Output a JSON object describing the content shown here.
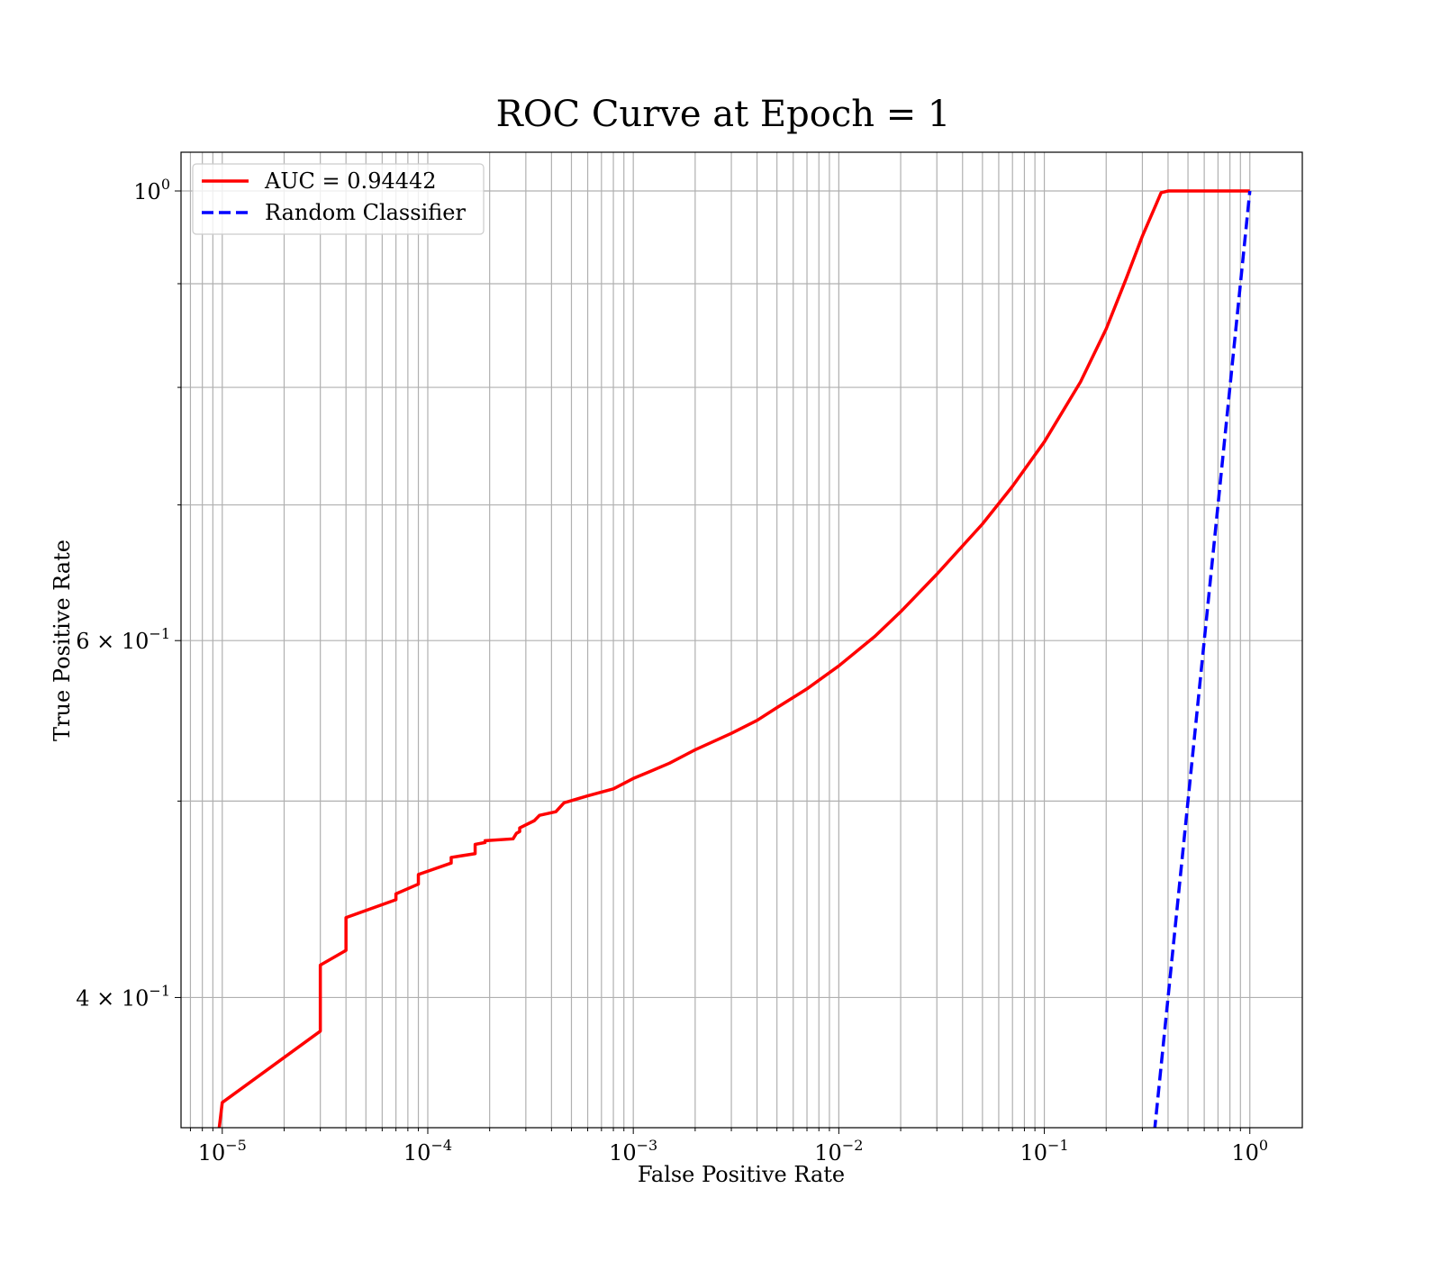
{
  "chart_data": {
    "type": "line",
    "title": "ROC Curve at Epoch = 1",
    "xlabel": "False Positive Rate",
    "ylabel": "True Positive Rate",
    "x_scale": "log",
    "y_scale": "log",
    "xlim": [
      6.3e-06,
      1.8
    ],
    "ylim": [
      0.345,
      1.045
    ],
    "grid": "both",
    "legend_position": "top-left",
    "x_ticks": [
      {
        "base": "10",
        "exp": "−5"
      },
      {
        "base": "10",
        "exp": "−4"
      },
      {
        "base": "10",
        "exp": "−3"
      },
      {
        "base": "10",
        "exp": "−2"
      },
      {
        "base": "10",
        "exp": "−1"
      },
      {
        "base": "10",
        "exp": "0"
      }
    ],
    "x_tick_values": [
      1e-05,
      0.0001,
      0.001,
      0.01,
      0.1,
      1
    ],
    "y_ticks": [
      {
        "value": 1.0,
        "mantissa": "",
        "base": "10",
        "exp": "0"
      },
      {
        "value": 0.6,
        "mantissa": "6 × ",
        "base": "10",
        "exp": "−1"
      },
      {
        "value": 0.4,
        "mantissa": "4 × ",
        "base": "10",
        "exp": "−1"
      }
    ],
    "y_minor_values": [
      0.9,
      0.8,
      0.7,
      0.5
    ],
    "series": [
      {
        "name": "AUC = 0.94442",
        "color": "#ff0000",
        "dash": "solid",
        "points": [
          [
            9.5e-06,
            0.34
          ],
          [
            1e-05,
            0.355
          ],
          [
            3e-05,
            0.385
          ],
          [
            3e-05,
            0.415
          ],
          [
            4e-05,
            0.422
          ],
          [
            4e-05,
            0.438
          ],
          [
            7e-05,
            0.447
          ],
          [
            7e-05,
            0.45
          ],
          [
            9e-05,
            0.455
          ],
          [
            9e-05,
            0.46
          ],
          [
            0.00013,
            0.466
          ],
          [
            0.00013,
            0.469
          ],
          [
            0.00017,
            0.471
          ],
          [
            0.00017,
            0.476
          ],
          [
            0.00019,
            0.477
          ],
          [
            0.00019,
            0.478
          ],
          [
            0.00026,
            0.479
          ],
          [
            0.00027,
            0.482
          ],
          [
            0.00028,
            0.483
          ],
          [
            0.00028,
            0.485
          ],
          [
            0.00033,
            0.489
          ],
          [
            0.00035,
            0.492
          ],
          [
            0.00042,
            0.494
          ],
          [
            0.00046,
            0.499
          ],
          [
            0.0006,
            0.503
          ],
          [
            0.0008,
            0.507
          ],
          [
            0.001,
            0.513
          ],
          [
            0.0012,
            0.517
          ],
          [
            0.0015,
            0.522
          ],
          [
            0.002,
            0.53
          ],
          [
            0.003,
            0.54
          ],
          [
            0.004,
            0.548
          ],
          [
            0.005,
            0.556
          ],
          [
            0.007,
            0.568
          ],
          [
            0.01,
            0.583
          ],
          [
            0.015,
            0.603
          ],
          [
            0.02,
            0.62
          ],
          [
            0.03,
            0.647
          ],
          [
            0.05,
            0.685
          ],
          [
            0.07,
            0.715
          ],
          [
            0.1,
            0.752
          ],
          [
            0.15,
            0.805
          ],
          [
            0.2,
            0.855
          ],
          [
            0.25,
            0.905
          ],
          [
            0.3,
            0.95
          ],
          [
            0.35,
            0.985
          ],
          [
            0.37,
            0.998
          ],
          [
            0.4,
            1.0
          ],
          [
            1.0,
            1.0
          ]
        ]
      },
      {
        "name": "Random Classifier",
        "color": "#0000ff",
        "dash": "dashed",
        "points": [
          [
            0.3,
            0.3
          ],
          [
            1.0,
            1.0
          ]
        ]
      }
    ]
  }
}
